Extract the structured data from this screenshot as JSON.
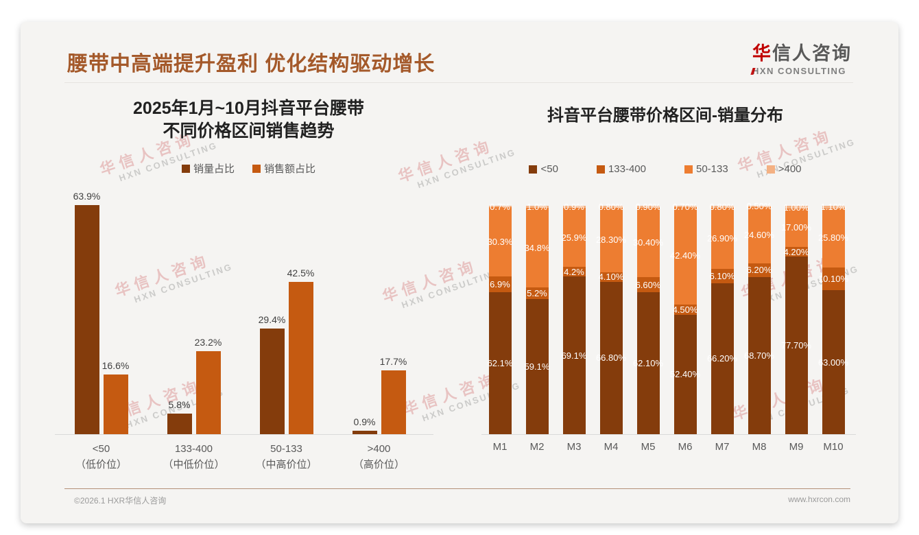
{
  "slide": {
    "title": "腰带中高端提升盈利 优化结构驱动增长",
    "logo": {
      "zh_accent": "华",
      "zh_rest": "信人咨询",
      "en": "HXN CONSULTING"
    },
    "watermark": {
      "zh": "华信人咨询",
      "en": "HXN CONSULTING"
    },
    "footer": {
      "copyright": "©2026.1 HXR华信人咨询",
      "website": "www.hxrcon.com"
    }
  },
  "colors": {
    "title_brown": "#a4592a",
    "brand_red": "#c00000",
    "dark_brown": "#843C0C",
    "burnt_orange": "#C55A11",
    "orange": "#ED7D31",
    "light_orange": "#F4B183",
    "axis_gray": "#D9D9D9",
    "footer_line_tan": "#B49077"
  },
  "chart_data": [
    {
      "type": "bar",
      "stacked": false,
      "title_lines": [
        "2025年1月~10月抖音平台腰带",
        "不同价格区间销售趋势"
      ],
      "legend_position": "top",
      "grid": false,
      "ylim": [
        0,
        70
      ],
      "xlabel": "",
      "ylabel": "",
      "categories": [
        "<50",
        "133-400",
        "50-133",
        ">400"
      ],
      "category_sublabels": [
        "（低价位）",
        "（中低价位）",
        "（中高价位）",
        "（高价位）"
      ],
      "series": [
        {
          "name": "销量占比",
          "color": "#843C0C",
          "values": [
            63.9,
            5.8,
            29.4,
            0.9
          ],
          "labels": [
            "63.9%",
            "5.8%",
            "29.4%",
            "0.9%"
          ]
        },
        {
          "name": "销售额占比",
          "color": "#C55A11",
          "values": [
            16.6,
            23.2,
            42.5,
            17.7
          ],
          "labels": [
            "16.6%",
            "23.2%",
            "42.5%",
            "17.7%"
          ]
        }
      ]
    },
    {
      "type": "bar",
      "stacked": true,
      "title": "抖音平台腰带价格区间-销量分布",
      "legend_position": "top",
      "grid": false,
      "ylim": [
        0,
        100
      ],
      "xlabel": "",
      "ylabel": "",
      "categories": [
        "M1",
        "M2",
        "M3",
        "M4",
        "M5",
        "M6",
        "M7",
        "M8",
        "M9",
        "M10"
      ],
      "series": [
        {
          "name": "<50",
          "color": "#843C0C",
          "values": [
            62.1,
            59.1,
            69.1,
            66.8,
            62.1,
            52.4,
            66.2,
            68.7,
            77.7,
            63.0
          ],
          "labels": [
            "62.1%",
            "59.1%",
            "69.1%",
            "66.80%",
            "62.10%",
            "52.40%",
            "66.20%",
            "68.70%",
            "77.70%",
            "63.00%"
          ]
        },
        {
          "name": "133-400",
          "color": "#C55A11",
          "values": [
            6.9,
            5.2,
            4.2,
            4.1,
            6.6,
            4.5,
            6.1,
            6.2,
            4.2,
            10.1
          ],
          "labels": [
            "6.9%",
            "5.2%",
            "4.2%",
            "4.10%",
            "6.60%",
            "4.50%",
            "6.10%",
            "6.20%",
            "4.20%",
            "10.10%"
          ]
        },
        {
          "name": "50-133",
          "color": "#ED7D31",
          "values": [
            30.3,
            34.8,
            25.9,
            28.3,
            30.4,
            42.4,
            26.9,
            24.6,
            17.0,
            25.8
          ],
          "labels": [
            "30.3%",
            "34.8%",
            "25.9%",
            "28.30%",
            "30.40%",
            "42.40%",
            "26.90%",
            "24.60%",
            "17.00%",
            "25.80%"
          ]
        },
        {
          "name": ">400",
          "color": "#F4B183",
          "values": [
            0.7,
            1.0,
            0.9,
            0.8,
            0.9,
            0.7,
            0.8,
            0.5,
            1.0,
            1.1
          ],
          "labels": [
            "0.7%",
            "1.0%",
            "0.9%",
            "0.80%",
            "0.90%",
            "0.70%",
            "0.80%",
            "0.50%",
            "1.00%",
            "1.10%"
          ]
        }
      ]
    }
  ]
}
